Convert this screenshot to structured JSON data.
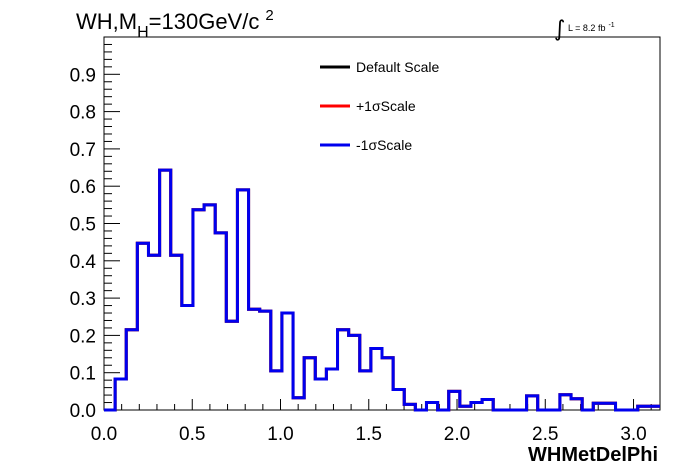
{
  "title": {
    "main": "WH,M",
    "sub": "H",
    "rest": "=130GeV/c",
    "sup": "2"
  },
  "lumi": {
    "integral": "∫",
    "text": "L = 8.2 fb",
    "sup": "-1"
  },
  "chart_data": {
    "type": "histogram",
    "xlabel": "WHMetDelPhi",
    "xlim": [
      0,
      3.15
    ],
    "ylim": [
      0,
      1.0
    ],
    "x_ticks": [
      "0.0",
      "0.5",
      "1.0",
      "1.5",
      "2.0",
      "2.5",
      "3.0"
    ],
    "x_tick_values": [
      0,
      0.5,
      1.0,
      1.5,
      2.0,
      2.5,
      3.0
    ],
    "y_ticks": [
      "0.0",
      "0.1",
      "0.2",
      "0.3",
      "0.4",
      "0.5",
      "0.6",
      "0.7",
      "0.8",
      "0.9"
    ],
    "y_tick_values": [
      0,
      0.1,
      0.2,
      0.3,
      0.4,
      0.5,
      0.6,
      0.7,
      0.8,
      0.9
    ],
    "bin_width": 0.063,
    "legend_position": "top-center",
    "series": [
      {
        "name": "Default Scale",
        "color": "#000000",
        "values": [
          0,
          0.083,
          0.215,
          0.447,
          0.415,
          0.643,
          0.415,
          0.28,
          0.537,
          0.55,
          0.475,
          0.238,
          0.59,
          0.27,
          0.265,
          0.105,
          0.26,
          0.033,
          0.14,
          0.083,
          0.11,
          0.215,
          0.2,
          0.105,
          0.165,
          0.14,
          0.055,
          0.015,
          0,
          0.02,
          0,
          0.05,
          0.01,
          0.02,
          0.028,
          0,
          0,
          0,
          0.038,
          0,
          0,
          0.041,
          0.03,
          0,
          0.018,
          0.018,
          0,
          0,
          0.01,
          0.01
        ]
      },
      {
        "name": "+1σScale",
        "color": "#ff0000",
        "values": [
          0,
          0.083,
          0.215,
          0.447,
          0.415,
          0.643,
          0.415,
          0.28,
          0.537,
          0.55,
          0.475,
          0.238,
          0.59,
          0.27,
          0.265,
          0.105,
          0.26,
          0.033,
          0.14,
          0.083,
          0.11,
          0.215,
          0.2,
          0.105,
          0.165,
          0.14,
          0.055,
          0.015,
          0,
          0.02,
          0,
          0.05,
          0.01,
          0.02,
          0.028,
          0,
          0,
          0,
          0.038,
          0,
          0,
          0.041,
          0.03,
          0,
          0.018,
          0.018,
          0,
          0,
          0.01,
          0.01
        ]
      },
      {
        "name": "-1σScale",
        "color": "#0000ee",
        "values": [
          0,
          0.083,
          0.215,
          0.447,
          0.415,
          0.643,
          0.415,
          0.28,
          0.537,
          0.55,
          0.475,
          0.238,
          0.59,
          0.27,
          0.265,
          0.105,
          0.26,
          0.033,
          0.14,
          0.083,
          0.11,
          0.215,
          0.2,
          0.105,
          0.165,
          0.14,
          0.055,
          0.015,
          0,
          0.02,
          0,
          0.05,
          0.01,
          0.02,
          0.028,
          0,
          0,
          0,
          0.038,
          0,
          0,
          0.041,
          0.03,
          0,
          0.018,
          0.018,
          0,
          0,
          0.01,
          0.01
        ]
      }
    ]
  }
}
